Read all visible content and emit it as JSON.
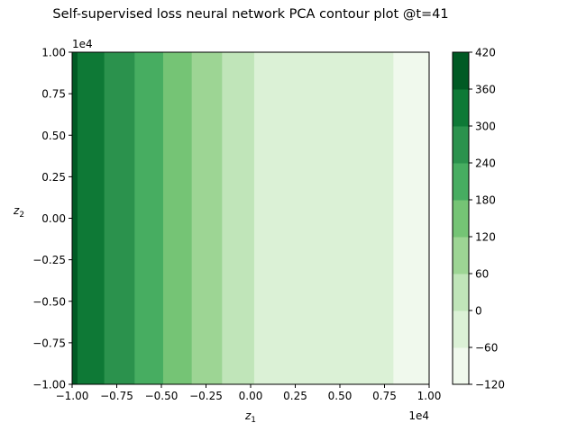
{
  "chart_data": {
    "type": "contour",
    "title": "Self-supervised loss neural network PCA contour plot @t=41",
    "xlabel_base": "z",
    "xlabel_sub": "1",
    "ylabel_base": "z",
    "ylabel_sub": "2",
    "x_offset_label": "1e4",
    "y_offset_label": "1e4",
    "xlim": [
      -1.0,
      1.0
    ],
    "ylim": [
      -1.0,
      1.0
    ],
    "x_ticks": [
      -1.0,
      -0.75,
      -0.5,
      -0.25,
      0.0,
      0.25,
      0.5,
      0.75,
      1.0
    ],
    "x_tick_labels": [
      "−1.00",
      "−0.75",
      "−0.50",
      "−0.25",
      "0.00",
      "0.25",
      "0.50",
      "0.75",
      "1.00"
    ],
    "y_ticks": [
      -1.0,
      -0.75,
      -0.5,
      -0.25,
      0.0,
      0.25,
      0.5,
      0.75,
      1.0
    ],
    "y_tick_labels": [
      "−1.00",
      "−0.75",
      "−0.50",
      "−0.25",
      "0.00",
      "0.25",
      "0.50",
      "0.75",
      "1.00"
    ],
    "colorbar": {
      "levels": [
        -120,
        -60,
        0,
        60,
        120,
        180,
        240,
        300,
        360,
        420
      ],
      "tick_labels": [
        "−120",
        "−60",
        "0",
        "60",
        "120",
        "180",
        "240",
        "300",
        "360",
        "420"
      ],
      "colors": [
        "#f0f9ed",
        "#dbf1d6",
        "#c0e5b9",
        "#9dd594",
        "#75c475",
        "#47ad61",
        "#2b924d",
        "#0e7936",
        "#005a24"
      ]
    },
    "bands": [
      {
        "x_start": -1.0,
        "x_end": -0.97,
        "level_index": 8
      },
      {
        "x_start": -0.97,
        "x_end": -0.82,
        "level_index": 7
      },
      {
        "x_start": -0.82,
        "x_end": -0.65,
        "level_index": 6
      },
      {
        "x_start": -0.65,
        "x_end": -0.49,
        "level_index": 5
      },
      {
        "x_start": -0.49,
        "x_end": -0.33,
        "level_index": 4
      },
      {
        "x_start": -0.33,
        "x_end": -0.16,
        "level_index": 3
      },
      {
        "x_start": -0.16,
        "x_end": 0.02,
        "level_index": 2
      },
      {
        "x_start": 0.02,
        "x_end": 0.8,
        "level_index": 1
      },
      {
        "x_start": 0.8,
        "x_end": 1.0,
        "level_index": 0
      }
    ]
  }
}
